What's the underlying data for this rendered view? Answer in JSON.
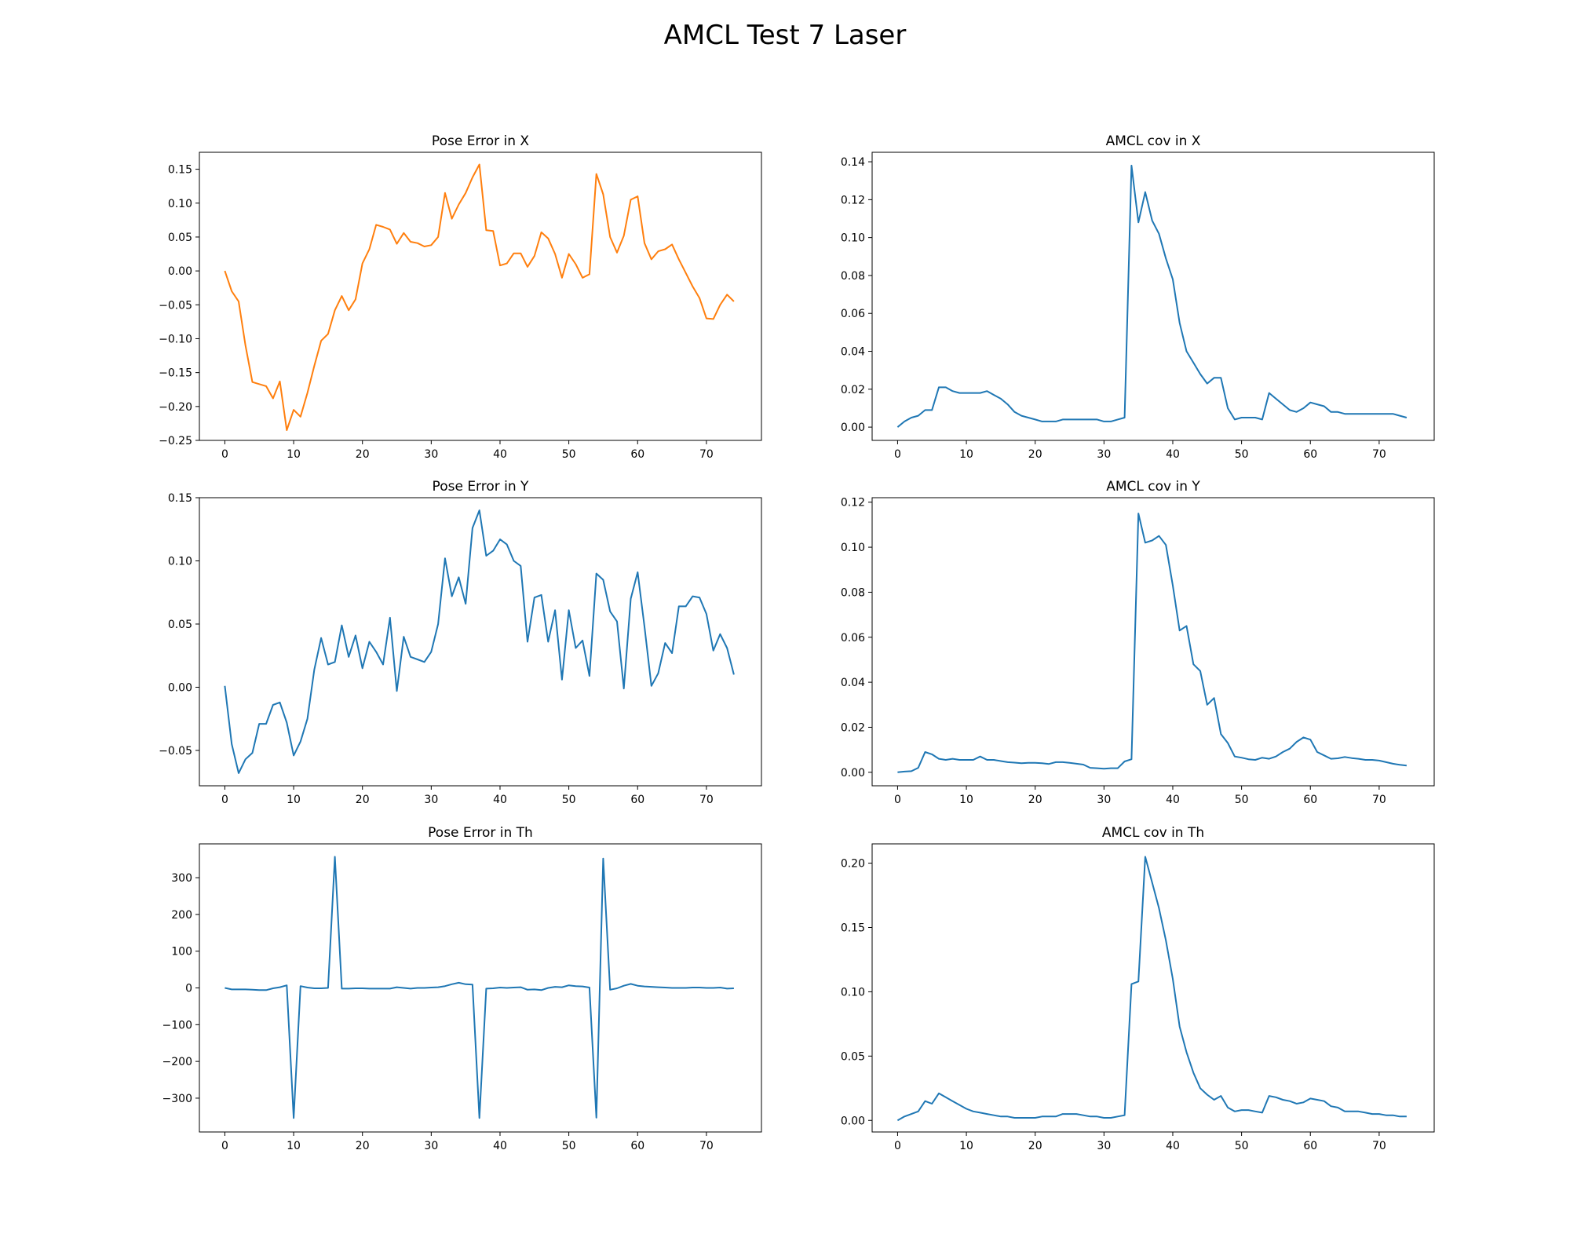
{
  "figure_title": "AMCL Test 7 Laser",
  "chart_data": [
    {
      "type": "line",
      "title": "Pose Error in X",
      "color": "#ff7f0e",
      "xlim": [
        -3.7,
        78
      ],
      "ylim": [
        -0.25,
        0.175
      ],
      "xticks": [
        0,
        10,
        20,
        30,
        40,
        50,
        60,
        70
      ],
      "yticks": [
        -0.25,
        -0.2,
        -0.15,
        -0.1,
        -0.05,
        0.0,
        0.05,
        0.1,
        0.15
      ],
      "ytick_labels": [
        "−0.25",
        "−0.20",
        "−0.15",
        "−0.10",
        "−0.05",
        "0.00",
        "0.05",
        "0.10",
        "0.15"
      ],
      "x": [
        0,
        1,
        2,
        3,
        4,
        5,
        6,
        7,
        8,
        9,
        10,
        11,
        12,
        13,
        14,
        15,
        16,
        17,
        18,
        19,
        20,
        21,
        22,
        23,
        24,
        25,
        26,
        27,
        28,
        29,
        30,
        31,
        32,
        33,
        34,
        35,
        36,
        37,
        38,
        39,
        40,
        41,
        42,
        43,
        44,
        45,
        46,
        47,
        48,
        49,
        50,
        51,
        52,
        53,
        54,
        55,
        56,
        57,
        58,
        59,
        60,
        61,
        62,
        63,
        64,
        65,
        66,
        67,
        68,
        69,
        70,
        71,
        72,
        73,
        74
      ],
      "y": [
        0.0,
        -0.03,
        -0.045,
        -0.11,
        -0.164,
        -0.167,
        -0.17,
        -0.188,
        -0.163,
        -0.235,
        -0.205,
        -0.215,
        -0.18,
        -0.14,
        -0.103,
        -0.093,
        -0.058,
        -0.037,
        -0.058,
        -0.042,
        0.011,
        0.032,
        0.068,
        0.065,
        0.061,
        0.04,
        0.056,
        0.043,
        0.041,
        0.036,
        0.038,
        0.05,
        0.115,
        0.077,
        0.098,
        0.115,
        0.138,
        0.157,
        0.06,
        0.059,
        0.008,
        0.011,
        0.026,
        0.026,
        0.006,
        0.022,
        0.057,
        0.048,
        0.025,
        -0.01,
        0.025,
        0.01,
        -0.01,
        -0.005,
        0.143,
        0.113,
        0.05,
        0.027,
        0.052,
        0.105,
        0.11,
        0.041,
        0.017,
        0.029,
        0.032,
        0.039,
        0.017,
        -0.003,
        -0.023,
        -0.04,
        -0.07,
        -0.071,
        -0.05,
        -0.035,
        -0.045
      ]
    },
    {
      "type": "line",
      "title": "AMCL cov in X",
      "color": "#1f77b4",
      "xlim": [
        -3.7,
        78
      ],
      "ylim": [
        -0.007,
        0.145
      ],
      "xticks": [
        0,
        10,
        20,
        30,
        40,
        50,
        60,
        70
      ],
      "yticks": [
        0.0,
        0.02,
        0.04,
        0.06,
        0.08,
        0.1,
        0.12,
        0.14
      ],
      "ytick_labels": [
        "0.00",
        "0.02",
        "0.04",
        "0.06",
        "0.08",
        "0.10",
        "0.12",
        "0.14"
      ],
      "x": [
        0,
        1,
        2,
        3,
        4,
        5,
        6,
        7,
        8,
        9,
        10,
        11,
        12,
        13,
        14,
        15,
        16,
        17,
        18,
        19,
        20,
        21,
        22,
        23,
        24,
        25,
        26,
        27,
        28,
        29,
        30,
        31,
        32,
        33,
        34,
        35,
        36,
        37,
        38,
        39,
        40,
        41,
        42,
        43,
        44,
        45,
        46,
        47,
        48,
        49,
        50,
        51,
        52,
        53,
        54,
        55,
        56,
        57,
        58,
        59,
        60,
        61,
        62,
        63,
        64,
        65,
        66,
        67,
        68,
        69,
        70,
        71,
        72,
        73,
        74
      ],
      "y": [
        0.0,
        0.003,
        0.005,
        0.006,
        0.009,
        0.009,
        0.021,
        0.021,
        0.019,
        0.018,
        0.018,
        0.018,
        0.018,
        0.019,
        0.017,
        0.015,
        0.012,
        0.008,
        0.006,
        0.005,
        0.004,
        0.003,
        0.003,
        0.003,
        0.004,
        0.004,
        0.004,
        0.004,
        0.004,
        0.004,
        0.003,
        0.003,
        0.004,
        0.005,
        0.138,
        0.108,
        0.124,
        0.109,
        0.102,
        0.089,
        0.078,
        0.055,
        0.04,
        0.034,
        0.028,
        0.023,
        0.026,
        0.026,
        0.01,
        0.004,
        0.005,
        0.005,
        0.005,
        0.004,
        0.018,
        0.015,
        0.012,
        0.009,
        0.008,
        0.01,
        0.013,
        0.012,
        0.011,
        0.008,
        0.008,
        0.007,
        0.007,
        0.007,
        0.007,
        0.007,
        0.007,
        0.007,
        0.007,
        0.006,
        0.005
      ]
    },
    {
      "type": "line",
      "title": "Pose Error in Y",
      "color": "#1f77b4",
      "xlim": [
        -3.7,
        78
      ],
      "ylim": [
        -0.078,
        0.15
      ],
      "xticks": [
        0,
        10,
        20,
        30,
        40,
        50,
        60,
        70
      ],
      "yticks": [
        -0.05,
        0.0,
        0.05,
        0.1,
        0.15
      ],
      "ytick_labels": [
        "−0.05",
        "0.00",
        "0.05",
        "0.10",
        "0.15"
      ],
      "x": [
        0,
        1,
        2,
        3,
        4,
        5,
        6,
        7,
        8,
        9,
        10,
        11,
        12,
        13,
        14,
        15,
        16,
        17,
        18,
        19,
        20,
        21,
        22,
        23,
        24,
        25,
        26,
        27,
        28,
        29,
        30,
        31,
        32,
        33,
        34,
        35,
        36,
        37,
        38,
        39,
        40,
        41,
        42,
        43,
        44,
        45,
        46,
        47,
        48,
        49,
        50,
        51,
        52,
        53,
        54,
        55,
        56,
        57,
        58,
        59,
        60,
        61,
        62,
        63,
        64,
        65,
        66,
        67,
        68,
        69,
        70,
        71,
        72,
        73,
        74
      ],
      "y": [
        0.001,
        -0.045,
        -0.068,
        -0.057,
        -0.052,
        -0.029,
        -0.029,
        -0.014,
        -0.012,
        -0.028,
        -0.054,
        -0.043,
        -0.025,
        0.014,
        0.039,
        0.018,
        0.02,
        0.049,
        0.024,
        0.041,
        0.015,
        0.036,
        0.028,
        0.018,
        0.055,
        -0.003,
        0.04,
        0.024,
        0.022,
        0.02,
        0.028,
        0.05,
        0.102,
        0.072,
        0.087,
        0.066,
        0.126,
        0.14,
        0.104,
        0.108,
        0.117,
        0.113,
        0.1,
        0.096,
        0.036,
        0.071,
        0.073,
        0.036,
        0.061,
        0.006,
        0.061,
        0.031,
        0.037,
        0.009,
        0.09,
        0.085,
        0.06,
        0.052,
        -0.001,
        0.07,
        0.091,
        0.048,
        0.001,
        0.011,
        0.035,
        0.027,
        0.064,
        0.064,
        0.072,
        0.071,
        0.058,
        0.029,
        0.042,
        0.031,
        0.01
      ]
    },
    {
      "type": "line",
      "title": "AMCL cov in Y",
      "color": "#1f77b4",
      "xlim": [
        -3.7,
        78
      ],
      "ylim": [
        -0.006,
        0.122
      ],
      "xticks": [
        0,
        10,
        20,
        30,
        40,
        50,
        60,
        70
      ],
      "yticks": [
        0.0,
        0.02,
        0.04,
        0.06,
        0.08,
        0.1,
        0.12
      ],
      "ytick_labels": [
        "0.00",
        "0.02",
        "0.04",
        "0.06",
        "0.08",
        "0.10",
        "0.12"
      ],
      "x": [
        0,
        1,
        2,
        3,
        4,
        5,
        6,
        7,
        8,
        9,
        10,
        11,
        12,
        13,
        14,
        15,
        16,
        17,
        18,
        19,
        20,
        21,
        22,
        23,
        24,
        25,
        26,
        27,
        28,
        29,
        30,
        31,
        32,
        33,
        34,
        35,
        36,
        37,
        38,
        39,
        40,
        41,
        42,
        43,
        44,
        45,
        46,
        47,
        48,
        49,
        50,
        51,
        52,
        53,
        54,
        55,
        56,
        57,
        58,
        59,
        60,
        61,
        62,
        63,
        64,
        65,
        66,
        67,
        68,
        69,
        70,
        71,
        72,
        73,
        74
      ],
      "y": [
        0.0,
        0.0003,
        0.0005,
        0.002,
        0.009,
        0.008,
        0.006,
        0.0055,
        0.006,
        0.0055,
        0.0055,
        0.0055,
        0.007,
        0.0055,
        0.0055,
        0.005,
        0.0045,
        0.0043,
        0.004,
        0.0042,
        0.0042,
        0.004,
        0.0037,
        0.0045,
        0.0045,
        0.0042,
        0.0038,
        0.0034,
        0.002,
        0.0018,
        0.0016,
        0.0018,
        0.0018,
        0.0048,
        0.0058,
        0.115,
        0.102,
        0.103,
        0.105,
        0.101,
        0.083,
        0.063,
        0.065,
        0.048,
        0.045,
        0.03,
        0.033,
        0.017,
        0.013,
        0.007,
        0.0065,
        0.0058,
        0.0055,
        0.0065,
        0.006,
        0.007,
        0.009,
        0.0105,
        0.0135,
        0.0155,
        0.0145,
        0.009,
        0.0075,
        0.006,
        0.0062,
        0.0068,
        0.0063,
        0.006,
        0.0055,
        0.0055,
        0.0052,
        0.0045,
        0.0038,
        0.0033,
        0.003
      ]
    },
    {
      "type": "line",
      "title": "Pose Error in Th",
      "color": "#1f77b4",
      "xlim": [
        -3.7,
        78
      ],
      "ylim": [
        -392,
        392
      ],
      "xticks": [
        0,
        10,
        20,
        30,
        40,
        50,
        60,
        70
      ],
      "yticks": [
        -300,
        -200,
        -100,
        0,
        100,
        200,
        300
      ],
      "ytick_labels": [
        "−300",
        "−200",
        "−100",
        "0",
        "100",
        "200",
        "300"
      ],
      "x": [
        0,
        1,
        2,
        3,
        4,
        5,
        6,
        7,
        8,
        9,
        10,
        11,
        12,
        13,
        14,
        15,
        16,
        17,
        18,
        19,
        20,
        21,
        22,
        23,
        24,
        25,
        26,
        27,
        28,
        29,
        30,
        31,
        32,
        33,
        34,
        35,
        36,
        37,
        38,
        39,
        40,
        41,
        42,
        43,
        44,
        45,
        46,
        47,
        48,
        49,
        50,
        51,
        52,
        53,
        54,
        55,
        56,
        57,
        58,
        59,
        60,
        61,
        62,
        63,
        64,
        65,
        66,
        67,
        68,
        69,
        70,
        71,
        72,
        73,
        74
      ],
      "y": [
        0,
        -4,
        -4,
        -4,
        -5,
        -6,
        -6,
        -1,
        2,
        7,
        -354,
        5,
        1,
        -1,
        -1,
        0,
        357,
        -2,
        -2,
        -1,
        -1,
        -2,
        -2,
        -2,
        -2,
        2,
        0,
        -2,
        0,
        0,
        1,
        2,
        5,
        10,
        14,
        10,
        9,
        -354,
        -2,
        -1,
        1,
        0,
        1,
        2,
        -5,
        -4,
        -6,
        0,
        3,
        2,
        7,
        5,
        4,
        1,
        -353,
        352,
        -5,
        -1,
        6,
        11,
        6,
        4,
        3,
        2,
        1,
        0,
        0,
        0,
        1,
        1,
        0,
        0,
        1,
        -2,
        -1
      ]
    },
    {
      "type": "line",
      "title": "AMCL cov in Th",
      "color": "#1f77b4",
      "xlim": [
        -3.7,
        78
      ],
      "ylim": [
        -0.009,
        0.215
      ],
      "xticks": [
        0,
        10,
        20,
        30,
        40,
        50,
        60,
        70
      ],
      "yticks": [
        0.0,
        0.05,
        0.1,
        0.15,
        0.2
      ],
      "ytick_labels": [
        "0.00",
        "0.05",
        "0.10",
        "0.15",
        "0.20"
      ],
      "x": [
        0,
        1,
        2,
        3,
        4,
        5,
        6,
        7,
        8,
        9,
        10,
        11,
        12,
        13,
        14,
        15,
        16,
        17,
        18,
        19,
        20,
        21,
        22,
        23,
        24,
        25,
        26,
        27,
        28,
        29,
        30,
        31,
        32,
        33,
        34,
        35,
        36,
        37,
        38,
        39,
        40,
        41,
        42,
        43,
        44,
        45,
        46,
        47,
        48,
        49,
        50,
        51,
        52,
        53,
        54,
        55,
        56,
        57,
        58,
        59,
        60,
        61,
        62,
        63,
        64,
        65,
        66,
        67,
        68,
        69,
        70,
        71,
        72,
        73,
        74
      ],
      "y": [
        0.0,
        0.003,
        0.005,
        0.007,
        0.015,
        0.013,
        0.021,
        0.018,
        0.015,
        0.012,
        0.009,
        0.007,
        0.006,
        0.005,
        0.004,
        0.003,
        0.003,
        0.002,
        0.002,
        0.002,
        0.002,
        0.003,
        0.003,
        0.003,
        0.005,
        0.005,
        0.005,
        0.004,
        0.003,
        0.003,
        0.002,
        0.002,
        0.003,
        0.004,
        0.106,
        0.108,
        0.205,
        0.185,
        0.165,
        0.14,
        0.11,
        0.073,
        0.053,
        0.037,
        0.025,
        0.02,
        0.016,
        0.019,
        0.01,
        0.007,
        0.008,
        0.008,
        0.007,
        0.006,
        0.019,
        0.018,
        0.016,
        0.015,
        0.013,
        0.014,
        0.017,
        0.016,
        0.015,
        0.011,
        0.01,
        0.007,
        0.007,
        0.007,
        0.006,
        0.005,
        0.005,
        0.004,
        0.004,
        0.003,
        0.003
      ]
    }
  ]
}
